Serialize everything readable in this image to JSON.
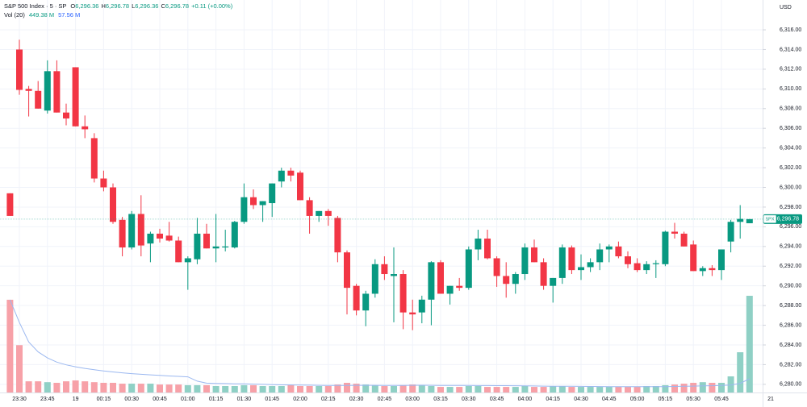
{
  "chart_data": {
    "type": "candlestick",
    "symbol": "S&P 500 Index · 5 · SP",
    "ohlc_keys": [
      "O",
      "H",
      "L",
      "C"
    ],
    "ohlc_values": [
      "6,296.36",
      "6,296.78",
      "6,296.36",
      "6,296.78"
    ],
    "change": "+0.11 (+0.00%)",
    "vol_title": "Vol (20)",
    "vol_values": [
      "449.38 M",
      "57.56 M"
    ],
    "currency": "USD",
    "symbol_tag": "SPX",
    "last_price_label": "6,296.78",
    "date_label": "21",
    "up_color": "#089981",
    "down_color": "#f23645",
    "volume_up_color": "#8fd0c5",
    "volume_down_color": "#f7a1a8",
    "ma_color": "#9bb8f0",
    "categories": [
      null,
      "23:30",
      null,
      null,
      "23:45",
      null,
      null,
      "19",
      null,
      null,
      "00:15",
      null,
      null,
      "00:30",
      null,
      null,
      "00:45",
      null,
      null,
      "01:00",
      null,
      null,
      "01:15",
      null,
      null,
      "01:30",
      null,
      null,
      "01:45",
      null,
      null,
      "02:00",
      null,
      null,
      "02:15",
      null,
      null,
      "02:30",
      null,
      null,
      "02:45",
      null,
      null,
      "03:00",
      null,
      null,
      "03:15",
      null,
      null,
      "03:30",
      null,
      null,
      "03:45",
      null,
      null,
      "04:00",
      null,
      null,
      "04:15",
      null,
      null,
      "04:30",
      null,
      null,
      "04:45",
      null,
      null,
      "05:00",
      null,
      null,
      "05:15",
      null,
      null,
      "05:30",
      null,
      null,
      "05:45",
      null,
      null,
      null
    ],
    "open": [
      6299.4,
      6314,
      6310,
      6309.8,
      6307.8,
      6311.8,
      6307.6,
      6312.2,
      6306.2,
      6305,
      6300.9,
      6300,
      6296.7,
      6293.9,
      6297.3,
      6294.3,
      6295.3,
      6295.1,
      6294.6,
      6292.4,
      6292.7,
      6295.3,
      6293.8,
      6293.9,
      6293.9,
      6296.5,
      6299,
      6298.2,
      6298.4,
      6300.6,
      6301.7,
      6301.5,
      6298.7,
      6297.1,
      6297.6,
      6296.9,
      6293.4,
      6290,
      6287.5,
      6289.2,
      6292.2,
      6291,
      6291.2,
      6287.3,
      6287.3,
      6288.6,
      6292.4,
      6289.2,
      6290,
      6289.8,
      6293.7,
      6294.8,
      6292.8,
      6291,
      6290.2,
      6291.2,
      6293.9,
      6292.4,
      6290,
      6290.8,
      6293.9,
      6291.6,
      6291.9,
      6292.4,
      6293.7,
      6294,
      6293,
      6292.3,
      6291.6,
      6292.2,
      6292.2,
      6295.5,
      6295.3,
      6294.2,
      6291.5,
      6291.8,
      6291.6,
      6294.5,
      6296.5,
      6296.36
    ],
    "high": [
      6299.4,
      6315,
      6310.3,
      6310.8,
      6312.9,
      6312.9,
      6308.5,
      6312.2,
      6307.3,
      6305.5,
      6301.7,
      6300.4,
      6297,
      6297.6,
      6299.2,
      6295.5,
      6295.8,
      6296.5,
      6295,
      6293,
      6296.9,
      6296.3,
      6297.3,
      6295.7,
      6296.6,
      6300.4,
      6299.8,
      6298.6,
      6300.4,
      6302,
      6302,
      6301.7,
      6299,
      6297.6,
      6297.8,
      6297.1,
      6293.6,
      6290.2,
      6289.5,
      6292.7,
      6293,
      6293.9,
      6291.6,
      6288.6,
      6289,
      6292.5,
      6292.6,
      6290,
      6290.8,
      6294,
      6295.7,
      6295.7,
      6293,
      6292.4,
      6291.4,
      6294.3,
      6294.7,
      6292.8,
      6290.8,
      6294.2,
      6294.1,
      6293.2,
      6292.8,
      6294.3,
      6294.2,
      6294.5,
      6293.5,
      6292.8,
      6292.5,
      6292.6,
      6295.6,
      6296.4,
      6295.5,
      6294.6,
      6292,
      6292.1,
      6293.7,
      6296.7,
      6298.2,
      6296.78
    ],
    "low": [
      6297.1,
      6309.4,
      6307.2,
      6308,
      6307.5,
      6307.6,
      6306.3,
      6306.2,
      6305,
      6300.5,
      6299.6,
      6296.3,
      6293,
      6293.7,
      6293,
      6292.4,
      6294.4,
      6294.5,
      6292.4,
      6289.6,
      6292.2,
      6293.8,
      6292.4,
      6293.5,
      6293.8,
      6296.3,
      6297.8,
      6296.5,
      6297,
      6300,
      6300.6,
      6298.7,
      6295.3,
      6296.5,
      6296.1,
      6292.4,
      6287.1,
      6287,
      6285.9,
      6288.8,
      6290.6,
      6286.3,
      6285.6,
      6285.5,
      6286.2,
      6286,
      6289.2,
      6288.1,
      6289.5,
      6289.6,
      6292.6,
      6292.7,
      6289.9,
      6288.8,
      6289.2,
      6290.6,
      6292.4,
      6289.6,
      6288.3,
      6290.2,
      6291.2,
      6290.6,
      6291.4,
      6291.6,
      6292.4,
      6292.8,
      6291.8,
      6291.4,
      6291.2,
      6290.8,
      6292,
      6294.8,
      6294,
      6291.5,
      6291,
      6291,
      6290.6,
      6293.4,
      6294.8,
      6296.36
    ],
    "close": [
      6297.1,
      6309.9,
      6309.8,
      6308,
      6311.8,
      6307.6,
      6307,
      6306.2,
      6305.9,
      6300.9,
      6300,
      6296.5,
      6293.9,
      6297.3,
      6294.1,
      6295.3,
      6294.8,
      6294.6,
      6292.4,
      6292.8,
      6295.3,
      6293.8,
      6294,
      6294,
      6296.5,
      6299,
      6298.2,
      6298.6,
      6300.4,
      6301.7,
      6301.2,
      6298.7,
      6297.1,
      6297.6,
      6297.1,
      6293.4,
      6289.8,
      6287.5,
      6289.2,
      6292.2,
      6291.2,
      6291.2,
      6287.3,
      6287.1,
      6288.6,
      6292.4,
      6289.2,
      6290,
      6289.8,
      6293.7,
      6294.8,
      6292.8,
      6291,
      6290.2,
      6291.2,
      6293.9,
      6292.4,
      6290,
      6290.8,
      6293.9,
      6291.6,
      6291.9,
      6292.4,
      6293.7,
      6294,
      6293,
      6292.2,
      6291.6,
      6292.2,
      6292.3,
      6295.5,
      6295.3,
      6294,
      6291.5,
      6291.8,
      6291.6,
      6293.7,
      6296.5,
      6296.8,
      6296.78
    ],
    "volume": [
      431,
      220,
      52,
      52,
      48,
      45,
      52,
      56,
      52,
      48,
      45,
      45,
      41,
      41,
      41,
      41,
      37,
      37,
      37,
      34,
      34,
      34,
      30,
      30,
      30,
      34,
      34,
      30,
      30,
      30,
      34,
      30,
      30,
      30,
      30,
      37,
      45,
      41,
      37,
      34,
      30,
      30,
      34,
      37,
      34,
      30,
      26,
      26,
      26,
      30,
      30,
      26,
      26,
      26,
      26,
      30,
      26,
      26,
      30,
      30,
      26,
      26,
      26,
      26,
      26,
      26,
      26,
      26,
      30,
      30,
      34,
      37,
      41,
      45,
      48,
      45,
      45,
      75,
      187,
      449.38
    ],
    "ylim": [
      6279.17,
      6319.03
    ],
    "volume_ylim": [
      0,
      1824
    ],
    "yticks": [
      {
        "value": 6280,
        "label": "6,280.00"
      },
      {
        "value": 6282,
        "label": "6,282.00"
      },
      {
        "value": 6284,
        "label": "6,284.00"
      },
      {
        "value": 6286,
        "label": "6,286.00"
      },
      {
        "value": 6288,
        "label": "6,288.00"
      },
      {
        "value": 6290,
        "label": "6,290.00"
      },
      {
        "value": 6292,
        "label": "6,292.00"
      },
      {
        "value": 6294,
        "label": "6,294.00"
      },
      {
        "value": 6296,
        "label": "6,296.00"
      },
      {
        "value": 6298,
        "label": "6,298.00"
      },
      {
        "value": 6300,
        "label": "6,300.00"
      },
      {
        "value": 6302,
        "label": "6,302.00"
      },
      {
        "value": 6304,
        "label": "6,304.00"
      },
      {
        "value": 6306,
        "label": "6,306.00"
      },
      {
        "value": 6308,
        "label": "6,308.00"
      },
      {
        "value": 6310,
        "label": "6,310.00"
      },
      {
        "value": 6312,
        "label": "6,312.00"
      },
      {
        "value": 6314,
        "label": "6,314.00"
      },
      {
        "value": 6316,
        "label": "6,316.00"
      }
    ],
    "grid": true
  }
}
